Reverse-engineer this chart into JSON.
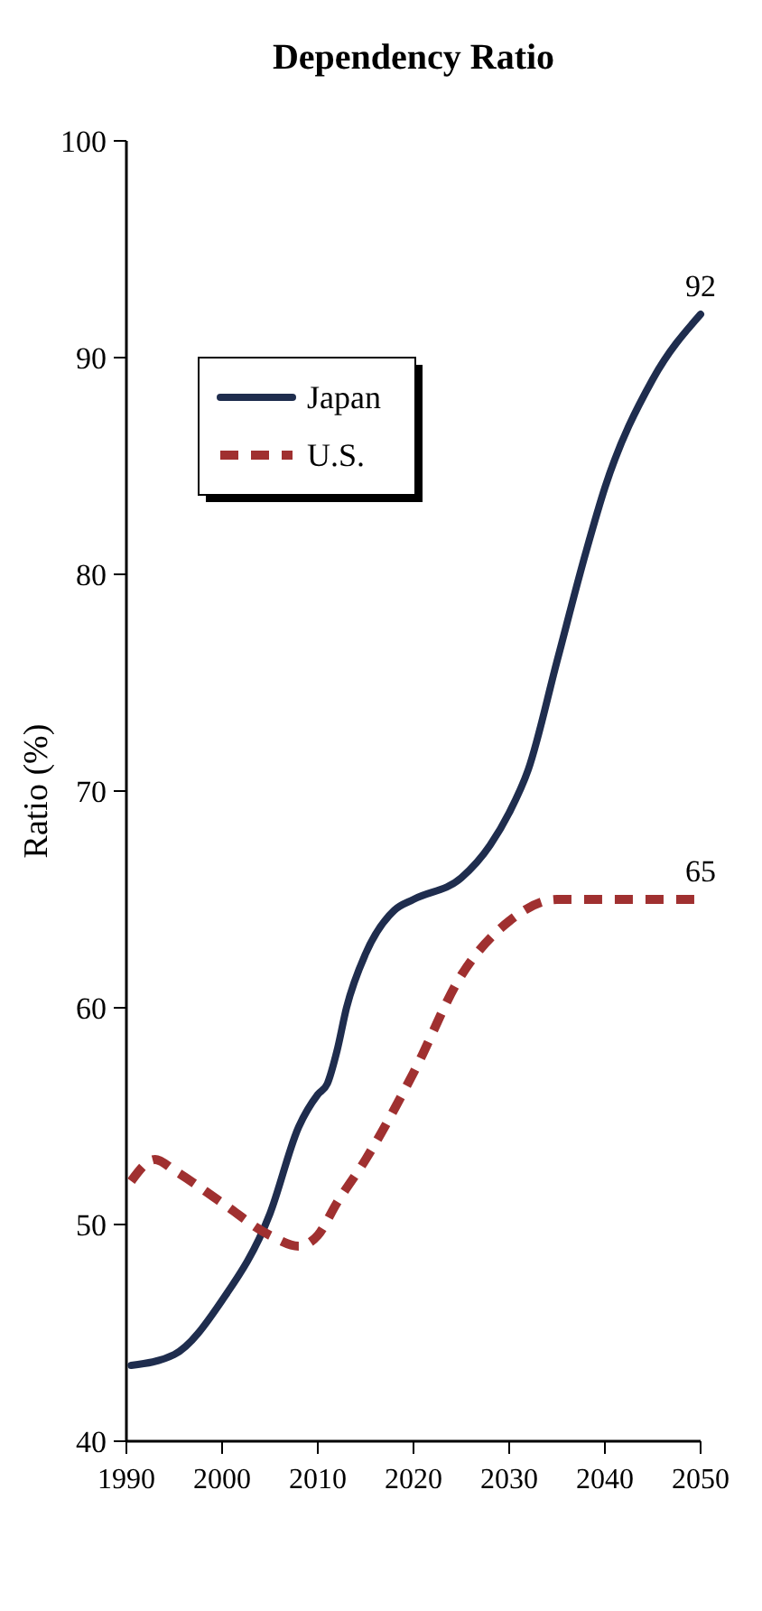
{
  "chart_data": {
    "type": "line",
    "title": "Dependency Ratio",
    "ylabel": "Ratio (%)",
    "xlim": [
      1990,
      2050
    ],
    "xticks": [
      1990,
      2000,
      2010,
      2020,
      2030,
      2040,
      2050
    ],
    "ylim": [
      40,
      100
    ],
    "yticks": [
      40,
      50,
      60,
      70,
      80,
      90,
      100
    ],
    "grid": false,
    "legend": "top left",
    "series": [
      {
        "name": "Japan",
        "color": "#1f2d4e",
        "line_style": "solid",
        "x": [
          1990.5,
          1995,
          2000,
          2005,
          2008,
          2010,
          2011,
          2012,
          2013,
          2015,
          2018,
          2020,
          2025,
          2028,
          2030,
          2032,
          2035,
          2038,
          2040,
          2045,
          2050
        ],
        "values": [
          43.5,
          44,
          46.5,
          50.5,
          54.5,
          56,
          56.5,
          58,
          60,
          62.5,
          64.5,
          65,
          66,
          67.5,
          69,
          71,
          76,
          81,
          84,
          89,
          92
        ]
      },
      {
        "name": "U.S.",
        "color": "#a03030",
        "line_style": "dashed",
        "x": [
          1990.5,
          1993,
          1995,
          2000,
          2005,
          2008,
          2010,
          2012,
          2015,
          2020,
          2025,
          2030,
          2035,
          2040,
          2050
        ],
        "values": [
          52,
          53,
          52.5,
          51,
          49.5,
          49,
          49.5,
          51,
          53,
          57,
          61.5,
          64,
          65,
          65,
          65
        ]
      }
    ],
    "annotations": [
      {
        "text": "92",
        "x": 2050,
        "y": 92
      },
      {
        "text": "65",
        "x": 2050,
        "y": 65
      }
    ]
  }
}
